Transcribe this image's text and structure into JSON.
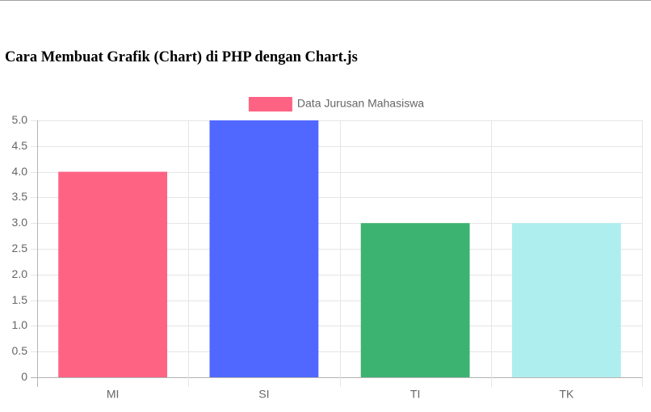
{
  "page": {
    "title": "Cara Membuat Grafik (Chart) di PHP dengan Chart.js"
  },
  "chart_data": {
    "type": "bar",
    "categories": [
      "MI",
      "SI",
      "TI",
      "TK"
    ],
    "series": [
      {
        "name": "Data Jurusan Mahasiswa",
        "values": [
          4,
          5,
          3,
          3
        ],
        "colors": [
          "#ff6384",
          "#5068ff",
          "#3cb371",
          "#afeeee"
        ]
      }
    ],
    "legend_color": "#ff6384",
    "ylim": [
      0,
      5
    ],
    "y_ticks": [
      "0",
      "0.5",
      "1.0",
      "1.5",
      "2.0",
      "2.5",
      "3.0",
      "3.5",
      "4.0",
      "4.5",
      "5.0"
    ],
    "grid": true,
    "legend_position": "top-center"
  }
}
